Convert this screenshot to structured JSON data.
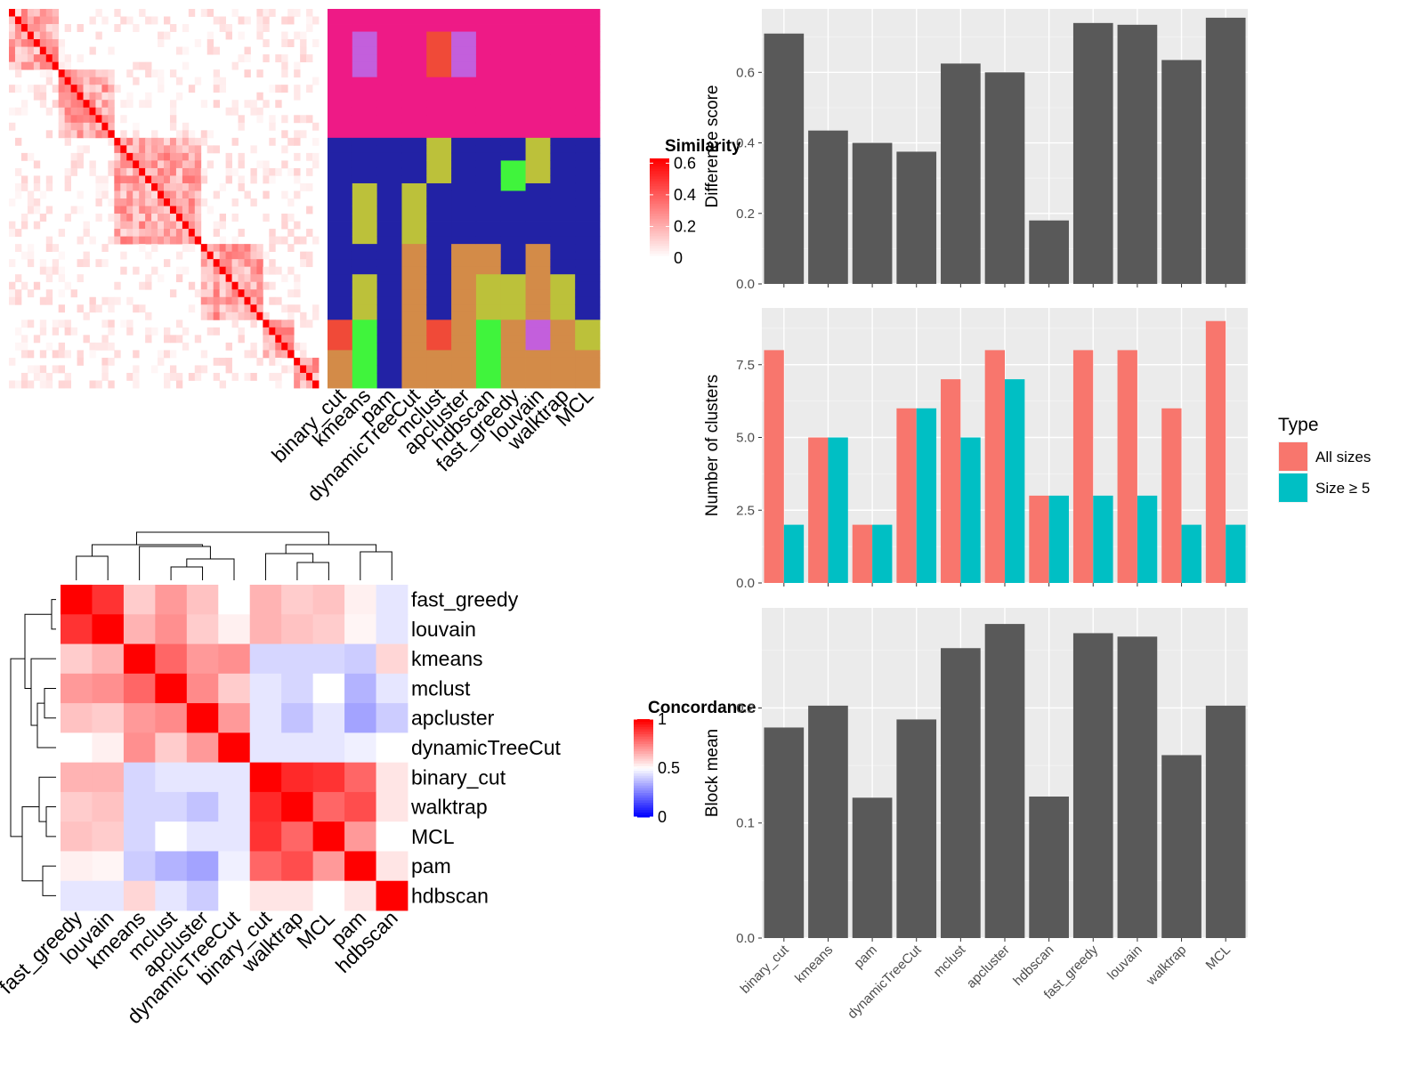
{
  "methods": [
    "binary_cut",
    "kmeans",
    "pam",
    "dynamicTreeCut",
    "mclust",
    "apcluster",
    "hdbscan",
    "fast_greedy",
    "louvain",
    "walktrap",
    "MCL"
  ],
  "palette": {
    "red": "#ff0000",
    "white": "#ffffff",
    "blue": "#0000ff",
    "bar_gray": "#595959",
    "panel_bg": "#ebebeb",
    "all_sizes": "#f8766d",
    "size_ge5": "#00bfc4",
    "cluster_colors": [
      "#ee1a86",
      "#2222a5",
      "#bcc13a",
      "#40f43c",
      "#c35fdc",
      "#d38b48",
      "#f04a38",
      "#7e0df2"
    ]
  },
  "similarity_heatmap": {
    "legend_title": "Similarity",
    "legend_ticks": [
      "0",
      "0.2",
      "0.4",
      "0.6"
    ],
    "blocks": [
      8,
      9,
      14,
      10,
      5,
      4
    ]
  },
  "cluster_assignment": {
    "col_labels": [
      "binary_cut",
      "kmeans",
      "pam",
      "dynamicTreeCut",
      "mclust",
      "apcluster",
      "hdbscan",
      "fast_greedy",
      "louvain",
      "walktrap",
      "MCL"
    ]
  },
  "concordance": {
    "legend_title": "Concordance",
    "legend_ticks": [
      "1",
      "0.5",
      "0"
    ],
    "order": [
      "fast_greedy",
      "louvain",
      "kmeans",
      "mclust",
      "apcluster",
      "dynamicTreeCut",
      "binary_cut",
      "walktrap",
      "MCL",
      "pam",
      "hdbscan"
    ],
    "matrix": [
      [
        1.0,
        0.9,
        0.6,
        0.7,
        0.62,
        0.5,
        0.65,
        0.6,
        0.62,
        0.53,
        0.45
      ],
      [
        0.9,
        1.0,
        0.65,
        0.72,
        0.6,
        0.53,
        0.65,
        0.62,
        0.6,
        0.52,
        0.45
      ],
      [
        0.6,
        0.65,
        1.0,
        0.8,
        0.7,
        0.72,
        0.42,
        0.42,
        0.42,
        0.4,
        0.58
      ],
      [
        0.7,
        0.72,
        0.8,
        1.0,
        0.73,
        0.6,
        0.45,
        0.42,
        0.5,
        0.35,
        0.45
      ],
      [
        0.62,
        0.6,
        0.7,
        0.73,
        1.0,
        0.7,
        0.45,
        0.38,
        0.45,
        0.32,
        0.4
      ],
      [
        0.5,
        0.53,
        0.72,
        0.6,
        0.7,
        1.0,
        0.45,
        0.45,
        0.45,
        0.47,
        0.5
      ],
      [
        0.65,
        0.65,
        0.42,
        0.45,
        0.45,
        0.45,
        1.0,
        0.92,
        0.9,
        0.8,
        0.55
      ],
      [
        0.6,
        0.62,
        0.42,
        0.42,
        0.38,
        0.45,
        0.92,
        1.0,
        0.8,
        0.85,
        0.55
      ],
      [
        0.62,
        0.6,
        0.42,
        0.5,
        0.45,
        0.45,
        0.9,
        0.8,
        1.0,
        0.7,
        0.5
      ],
      [
        0.53,
        0.52,
        0.4,
        0.35,
        0.32,
        0.47,
        0.8,
        0.85,
        0.7,
        1.0,
        0.55
      ],
      [
        0.45,
        0.45,
        0.58,
        0.45,
        0.4,
        0.5,
        0.55,
        0.55,
        0.5,
        0.55,
        1.0
      ]
    ]
  },
  "chart_data": [
    {
      "type": "bar",
      "categories": [
        "binary_cut",
        "kmeans",
        "pam",
        "dynamicTreeCut",
        "mclust",
        "apcluster",
        "hdbscan",
        "fast_greedy",
        "louvain",
        "walktrap",
        "MCL"
      ],
      "values": [
        0.71,
        0.435,
        0.4,
        0.375,
        0.625,
        0.6,
        0.18,
        0.74,
        0.735,
        0.635,
        0.755
      ],
      "ylabel": "Difference score",
      "ylim": [
        0,
        0.78
      ],
      "yticks": [
        0.0,
        0.2,
        0.4,
        0.6
      ],
      "ytick_labels": [
        "0.0",
        "0.2",
        "0.4",
        "0.6"
      ],
      "grid": true
    },
    {
      "type": "bar",
      "categories": [
        "binary_cut",
        "kmeans",
        "pam",
        "dynamicTreeCut",
        "mclust",
        "apcluster",
        "hdbscan",
        "fast_greedy",
        "louvain",
        "walktrap",
        "MCL"
      ],
      "series": [
        {
          "name": "All sizes",
          "values": [
            8,
            5,
            2,
            6,
            7,
            8,
            3,
            8,
            8,
            6,
            9
          ]
        },
        {
          "name": "Size ≥ 5",
          "values": [
            2,
            5,
            2,
            6,
            5,
            7,
            3,
            3,
            3,
            2,
            2
          ]
        }
      ],
      "ylabel": "Number of clusters",
      "ylim": [
        0,
        9.45
      ],
      "yticks": [
        0,
        2.5,
        5,
        7.5
      ],
      "ytick_labels": [
        "0.0",
        "2.5",
        "5.0",
        "7.5"
      ],
      "legend_title": "Type",
      "legend_position": "right",
      "grid": true
    },
    {
      "type": "bar",
      "categories": [
        "binary_cut",
        "kmeans",
        "pam",
        "dynamicTreeCut",
        "mclust",
        "apcluster",
        "hdbscan",
        "fast_greedy",
        "louvain",
        "walktrap",
        "MCL"
      ],
      "values": [
        0.183,
        0.202,
        0.122,
        0.19,
        0.252,
        0.273,
        0.123,
        0.265,
        0.262,
        0.159,
        0.202
      ],
      "ylabel": "Block mean",
      "ylim": [
        0,
        0.287
      ],
      "yticks": [
        0.0,
        0.1,
        0.2
      ],
      "ytick_labels": [
        "0.0",
        "0.1",
        "0.2"
      ],
      "grid": true
    }
  ]
}
